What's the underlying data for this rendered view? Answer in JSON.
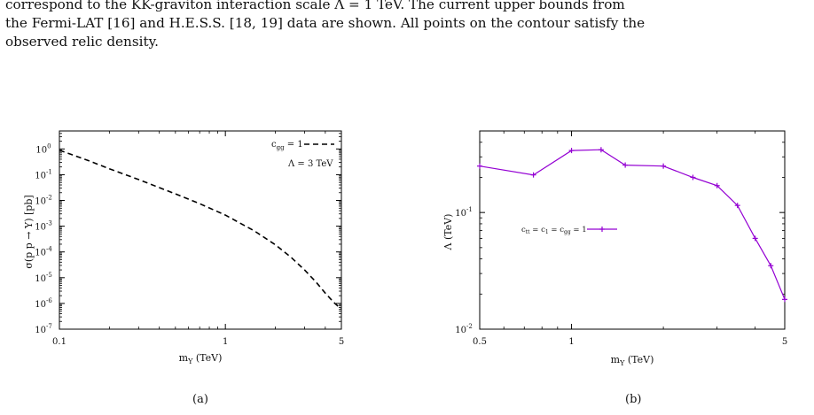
{
  "caption": {
    "lines": [
      "correspond to the KK-graviton interaction scale Λ = 1 TeV. The current upper bounds from",
      "the Fermi-LAT [16] and H.E.S.S. [18, 19] data are shown. All points on the contour satisfy the",
      "observed relic density."
    ]
  },
  "subfig_labels": [
    "(a)",
    "(b)"
  ],
  "chart_data": [
    {
      "type": "line",
      "xlabel_main": "m",
      "xlabel_sub": "Y",
      "xlabel_rest": " (TeV)",
      "ylabel": "σ(p p → Y) [pb]",
      "xscale": "log",
      "yscale": "log",
      "xlim": [
        0.1,
        5
      ],
      "ylim": [
        1e-07,
        5
      ],
      "x_ticks": [
        0.1,
        1,
        5
      ],
      "x_tick_labels": [
        "0.1",
        "1",
        "5"
      ],
      "y_ticks": [
        1e-07,
        1e-06,
        1e-05,
        0.0001,
        0.001,
        0.01,
        0.1,
        1
      ],
      "y_tick_exponents": [
        "-7",
        "-6",
        "-5",
        "-4",
        "-3",
        "-2",
        "-1",
        "0"
      ],
      "y_tick_base": "10",
      "legend": {
        "label_main": "c",
        "label_sub": "gg",
        "label_rest": " = 1",
        "style": "dashed",
        "placement": "top-right"
      },
      "annotation": "Λ = 3 TeV",
      "series": [
        {
          "style": "dashed",
          "color": "#000000",
          "x": [
            0.1,
            0.15,
            0.2,
            0.3,
            0.5,
            0.7,
            1.0,
            1.5,
            2.0,
            2.5,
            3.0,
            3.5,
            4.0,
            4.5,
            5.0
          ],
          "y": [
            0.9,
            0.35,
            0.17,
            0.065,
            0.018,
            0.0075,
            0.0027,
            0.00065,
            0.00019,
            6e-05,
            2e-05,
            7e-06,
            2.5e-06,
            1.1e-06,
            6e-07
          ]
        }
      ]
    },
    {
      "type": "line",
      "xlabel_main": "m",
      "xlabel_sub": "Y",
      "xlabel_rest": " (TeV)",
      "ylabel": "Λ (TeV)",
      "xscale": "log",
      "yscale": "log",
      "xlim": [
        0.5,
        5
      ],
      "ylim": [
        0.01,
        0.5
      ],
      "x_ticks": [
        0.5,
        1,
        5
      ],
      "x_tick_labels": [
        "0.5",
        "1",
        "5"
      ],
      "y_ticks": [
        0.01,
        0.1
      ],
      "y_tick_exponents": [
        "-2",
        "-1"
      ],
      "y_tick_base": "10",
      "legend": {
        "label": "cₜₜ = c₁ = c₉₉ = 1",
        "label_parts": [
          "c",
          "tt",
          " = c",
          "1",
          " = c",
          "gg",
          " = 1"
        ],
        "style": "solid-marker",
        "color": "#9400d3",
        "placement": "center-left"
      },
      "series": [
        {
          "style": "solid",
          "color": "#9400d3",
          "marker": "plus",
          "x": [
            0.5,
            0.75,
            1.0,
            1.25,
            1.5,
            2.0,
            2.5,
            3.0,
            3.5,
            4.0,
            4.5,
            5.0
          ],
          "y": [
            0.25,
            0.21,
            0.34,
            0.345,
            0.255,
            0.25,
            0.2,
            0.17,
            0.115,
            0.06,
            0.035,
            0.018
          ]
        }
      ]
    }
  ]
}
